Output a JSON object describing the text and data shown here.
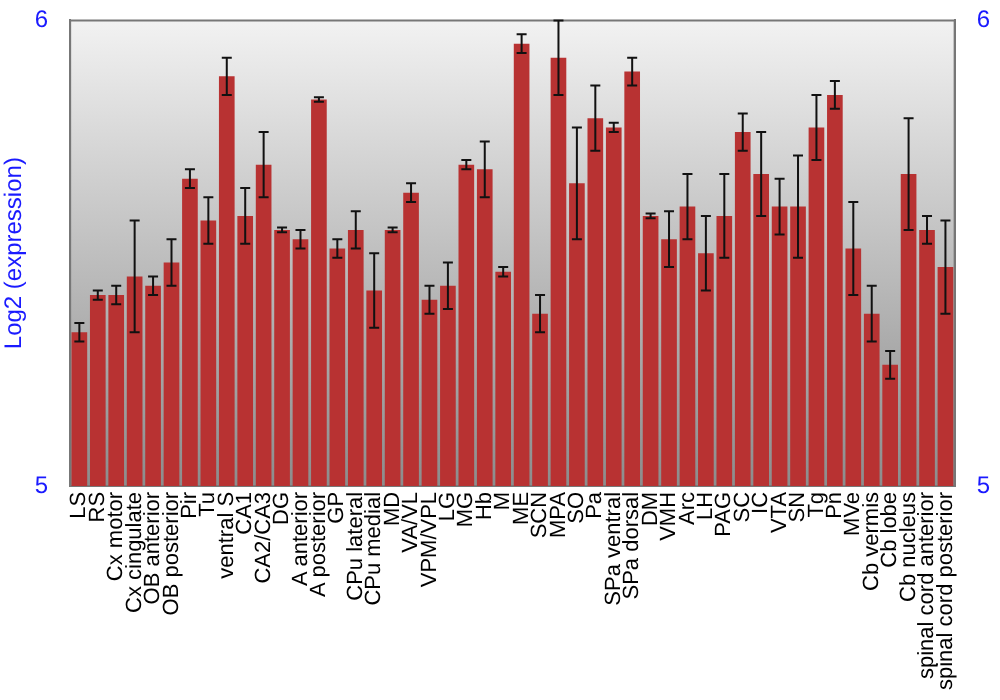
{
  "chart_data": {
    "type": "bar",
    "ylabel": "Log2 (expression)",
    "categories": [
      "LS",
      "RS",
      "Cx motor",
      "Cx cingulate",
      "OB anterior",
      "OB posterior",
      "Pir",
      "Tu",
      "ventral S",
      "CA1",
      "CA2/CA3",
      "DG",
      "A anterior",
      "A posterior",
      "GP",
      "CPu lateral",
      "CPu medial",
      "MD",
      "VA/VL",
      "VPM/VPL",
      "LG",
      "MG",
      "Hb",
      "M",
      "ME",
      "SCN",
      "MPA",
      "SO",
      "Pa",
      "SPa ventral",
      "SPa dorsal",
      "DM",
      "VMH",
      "Arc",
      "LH",
      "PAG",
      "SC",
      "IC",
      "VTA",
      "SN",
      "Tg",
      "Pn",
      "MVe",
      "Cb vermis",
      "Cb lobe",
      "Cb nucleus",
      "spinal cord anterior",
      "spinal cord posterior"
    ],
    "values": [
      5.33,
      5.41,
      5.41,
      5.45,
      5.43,
      5.48,
      5.66,
      5.57,
      5.88,
      5.58,
      5.69,
      5.55,
      5.53,
      5.83,
      5.51,
      5.55,
      5.42,
      5.55,
      5.63,
      5.4,
      5.43,
      5.69,
      5.68,
      5.46,
      5.95,
      5.37,
      5.92,
      5.65,
      5.79,
      5.77,
      5.89,
      5.58,
      5.53,
      5.6,
      5.5,
      5.58,
      5.76,
      5.67,
      5.6,
      5.6,
      5.77,
      5.84,
      5.51,
      5.37,
      5.26,
      5.67,
      5.55,
      5.47
    ],
    "errors": [
      0.02,
      0.01,
      0.02,
      0.12,
      0.02,
      0.05,
      0.02,
      0.05,
      0.04,
      0.06,
      0.07,
      0.005,
      0.02,
      0.005,
      0.02,
      0.04,
      0.08,
      0.005,
      0.02,
      0.03,
      0.05,
      0.01,
      0.06,
      0.01,
      0.02,
      0.04,
      0.08,
      0.12,
      0.07,
      0.01,
      0.03,
      0.005,
      0.06,
      0.07,
      0.08,
      0.09,
      0.04,
      0.09,
      0.06,
      0.11,
      0.07,
      0.03,
      0.1,
      0.06,
      0.03,
      0.12,
      0.03,
      0.1
    ],
    "color": "#b83232",
    "ylim": [
      5,
      6
    ],
    "yticks": [
      5,
      6
    ],
    "y2lim": [
      5,
      6
    ],
    "y2ticks": [
      5,
      6
    ],
    "grid": false,
    "legend": false
  }
}
